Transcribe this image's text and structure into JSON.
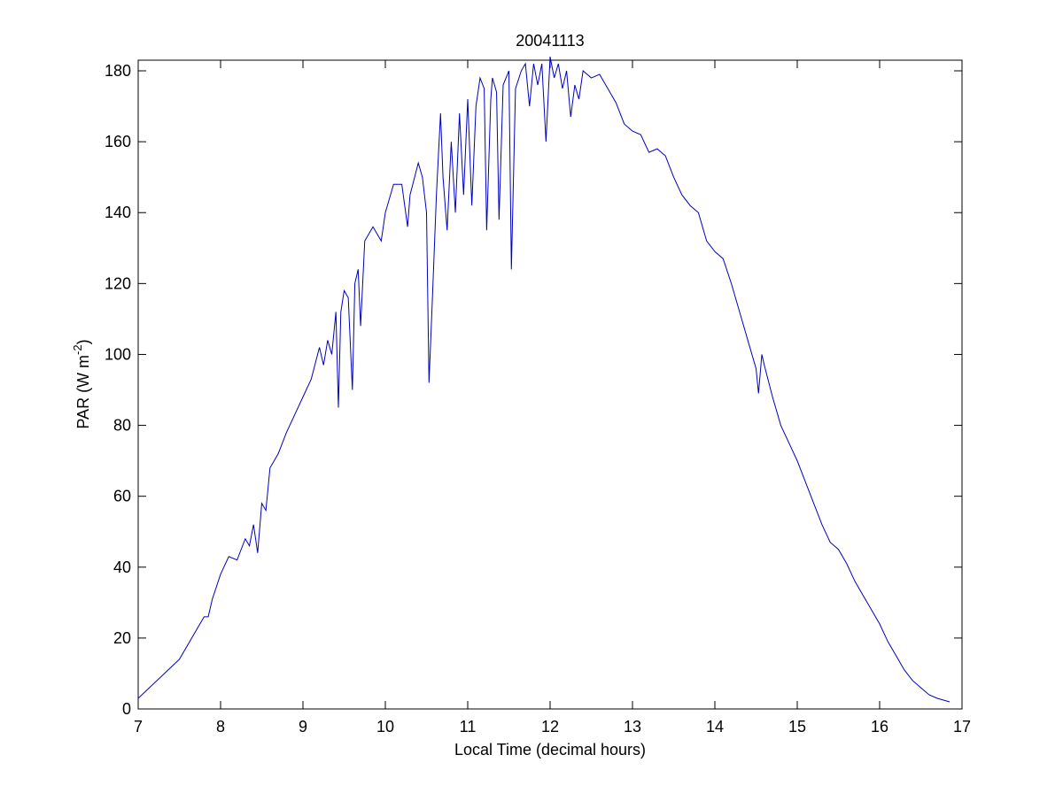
{
  "chart_data": {
    "type": "line",
    "title": "20041113",
    "xlabel": "Local Time (decimal hours)",
    "ylabel": {
      "main": "PAR (W m",
      "sup": "-2",
      "end": ")"
    },
    "xlim": [
      7,
      17
    ],
    "xticks": [
      7,
      8,
      9,
      10,
      11,
      12,
      13,
      14,
      15,
      16,
      17
    ],
    "ylim": [
      0,
      183
    ],
    "yticks": [
      0,
      20,
      40,
      60,
      80,
      100,
      120,
      140,
      160,
      180
    ],
    "grid": false,
    "series": [
      {
        "color": "#0000c0",
        "x": [
          7.0,
          7.5,
          7.8,
          7.85,
          7.9,
          8.0,
          8.1,
          8.2,
          8.3,
          8.35,
          8.4,
          8.45,
          8.5,
          8.55,
          8.6,
          8.7,
          8.8,
          8.9,
          9.0,
          9.1,
          9.2,
          9.25,
          9.3,
          9.35,
          9.4,
          9.43,
          9.46,
          9.5,
          9.55,
          9.6,
          9.63,
          9.67,
          9.7,
          9.75,
          9.85,
          9.95,
          10.0,
          10.1,
          10.2,
          10.27,
          10.3,
          10.4,
          10.45,
          10.5,
          10.53,
          10.57,
          10.62,
          10.67,
          10.7,
          10.75,
          10.8,
          10.85,
          10.9,
          10.95,
          11.0,
          11.05,
          11.1,
          11.15,
          11.2,
          11.23,
          11.28,
          11.3,
          11.35,
          11.38,
          11.43,
          11.5,
          11.53,
          11.58,
          11.65,
          11.7,
          11.75,
          11.8,
          11.85,
          11.9,
          11.95,
          12.0,
          12.05,
          12.1,
          12.15,
          12.2,
          12.25,
          12.3,
          12.35,
          12.4,
          12.5,
          12.6,
          12.7,
          12.8,
          12.9,
          13.0,
          13.1,
          13.2,
          13.3,
          13.4,
          13.5,
          13.6,
          13.7,
          13.8,
          13.9,
          14.0,
          14.1,
          14.2,
          14.3,
          14.4,
          14.5,
          14.53,
          14.57,
          14.6,
          14.7,
          14.8,
          14.9,
          15.0,
          15.1,
          15.2,
          15.3,
          15.4,
          15.5,
          15.6,
          15.7,
          15.8,
          15.9,
          16.0,
          16.1,
          16.2,
          16.3,
          16.4,
          16.5,
          16.6,
          16.7,
          16.85
        ],
        "values": [
          3,
          14,
          26,
          26,
          31,
          38,
          43,
          42,
          48,
          46,
          52,
          44,
          58,
          56,
          68,
          72,
          78,
          83,
          88,
          93,
          102,
          97,
          104,
          100,
          112,
          85,
          112,
          118,
          116,
          90,
          120,
          124,
          108,
          132,
          136,
          132,
          140,
          148,
          148,
          136,
          145,
          154,
          150,
          140,
          92,
          115,
          145,
          168,
          150,
          135,
          160,
          140,
          168,
          145,
          172,
          142,
          170,
          178,
          175,
          135,
          172,
          178,
          174,
          138,
          176,
          180,
          124,
          175,
          180,
          182,
          170,
          182,
          176,
          182,
          160,
          184,
          178,
          182,
          175,
          180,
          167,
          176,
          172,
          180,
          178,
          179,
          175,
          171,
          165,
          163,
          162,
          157,
          158,
          156,
          150,
          145,
          142,
          140,
          132,
          129,
          127,
          120,
          112,
          104,
          96,
          89,
          100,
          97,
          88,
          80,
          75,
          70,
          64,
          58,
          52,
          47,
          45,
          41,
          36,
          32,
          28,
          24,
          19,
          15,
          11,
          8,
          6,
          4,
          3,
          2
        ]
      }
    ]
  }
}
